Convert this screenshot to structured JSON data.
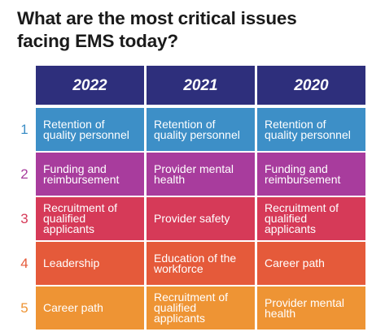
{
  "title": {
    "line1": "What are the most critical issues",
    "line2": "facing EMS today?"
  },
  "table": {
    "headers": [
      "2022",
      "2021",
      "2020"
    ],
    "rows": [
      {
        "number": "1",
        "color": "#3d8fc7",
        "cells": [
          "Retention of quality personnel",
          "Retention of quality personnel",
          "Retention of quality personnel"
        ]
      },
      {
        "number": "2",
        "color": "#a83c9d",
        "cells": [
          "Funding and reimbursement",
          "Provider mental health",
          "Funding and reimbursement"
        ]
      },
      {
        "number": "3",
        "color": "#d63a58",
        "cells": [
          "Recruitment of qualified applicants",
          "Provider safety",
          "Recruitment of qualified applicants"
        ]
      },
      {
        "number": "4",
        "color": "#e55a3a",
        "cells": [
          "Leadership",
          "Education of the workforce",
          "Career path"
        ]
      },
      {
        "number": "5",
        "color": "#ee9434",
        "cells": [
          "Career path",
          "Recruitment of qualified applicants",
          "Provider mental health"
        ]
      }
    ]
  }
}
